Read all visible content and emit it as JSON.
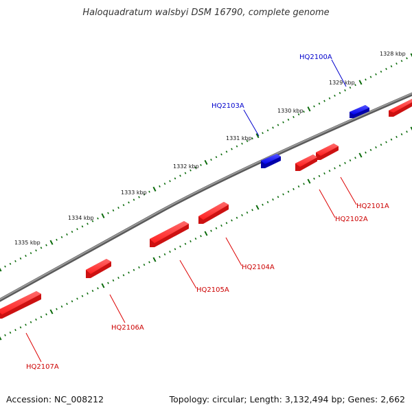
{
  "title": "Haloquadratum walsbyi DSM 16790, complete genome",
  "footer": {
    "accession": "Accession: NC_008212",
    "summary": "Topology: circular; Length: 3,132,494 bp; Genes: 2,662"
  },
  "scale_labels": [
    "1328 kbp",
    "1329 kbp",
    "1330 kbp",
    "1331 kbp",
    "1332 kbp",
    "1333 kbp",
    "1334 kbp",
    "1335 kbp"
  ],
  "genes": [
    {
      "id": "HQ2100A",
      "strand": "forward",
      "color": "#0000cc"
    },
    {
      "id": "HQ2101A",
      "strand": "reverse",
      "color": "#cc0000"
    },
    {
      "id": "HQ2102A",
      "strand": "reverse",
      "color": "#cc0000"
    },
    {
      "id": "HQ2103A",
      "strand": "forward",
      "color": "#0000cc"
    },
    {
      "id": "HQ2104A",
      "strand": "reverse",
      "color": "#cc0000"
    },
    {
      "id": "HQ2105A",
      "strand": "reverse",
      "color": "#cc0000"
    },
    {
      "id": "HQ2106A",
      "strand": "reverse",
      "color": "#cc0000"
    },
    {
      "id": "HQ2107A",
      "strand": "reverse",
      "color": "#cc0000"
    }
  ],
  "colors": {
    "forward_gene": "#0000ff",
    "reverse_gene": "#ff0000",
    "backbone": "#7a7a7a",
    "tick_major": "#0a6a0a",
    "tick_minor": "#1e7a1e"
  }
}
